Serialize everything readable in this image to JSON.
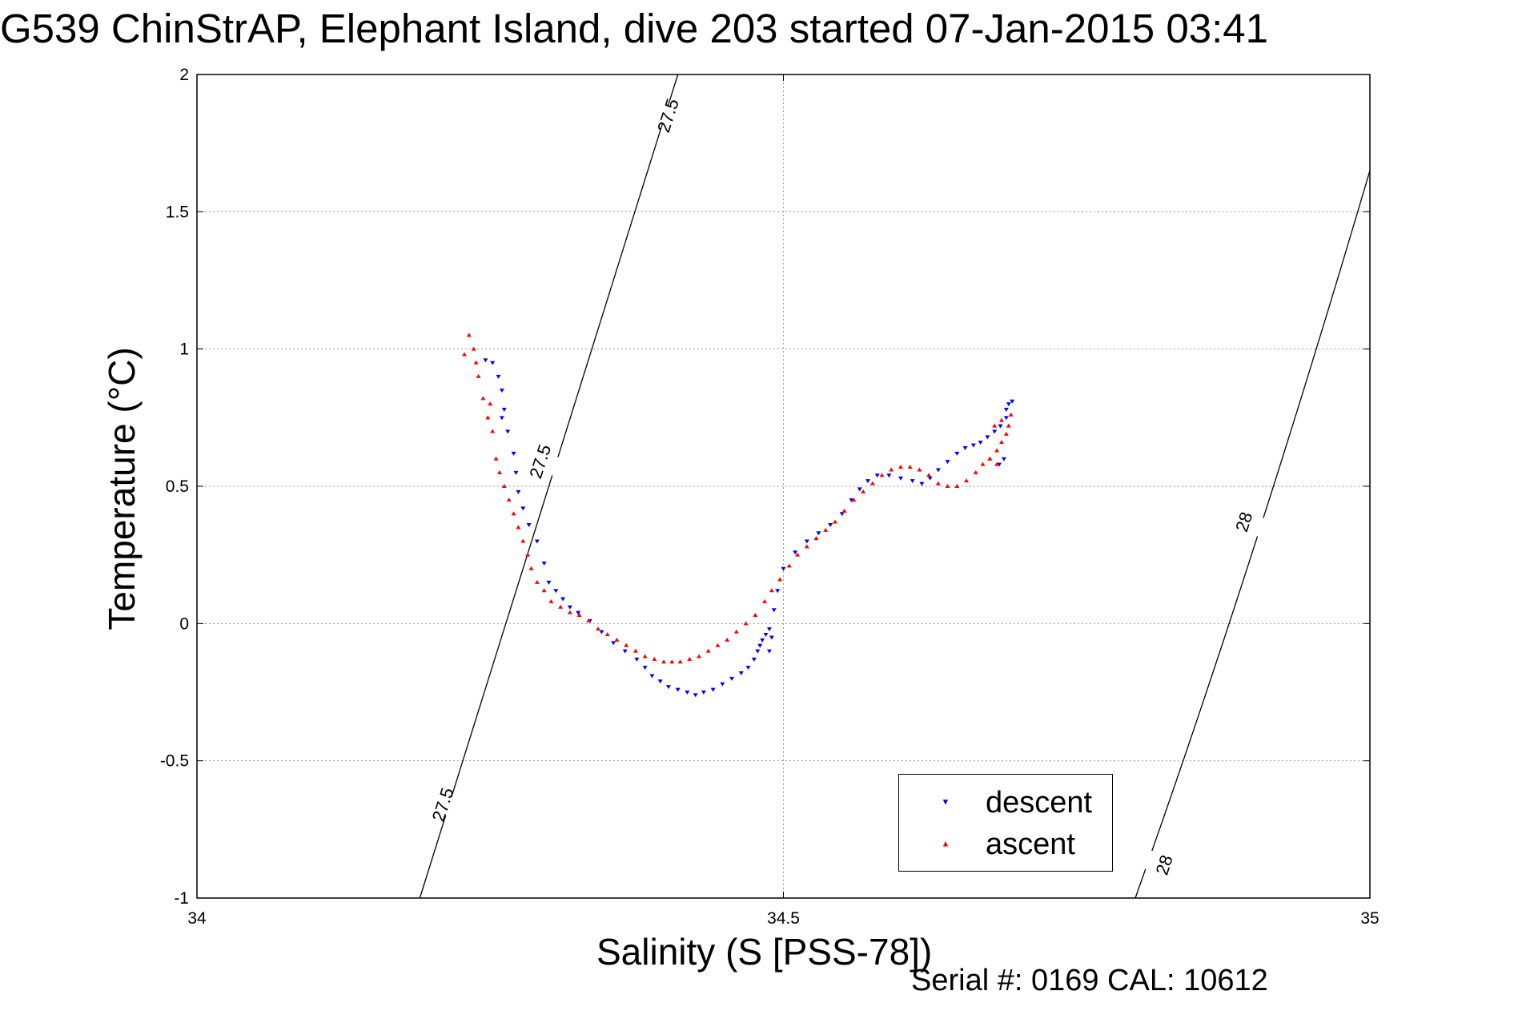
{
  "title": "G539 ChinStrAP, Elephant Island, dive 203 started 07-Jan-2015 03:41",
  "serial_text": "Serial #: 0169 CAL: 10612",
  "chart_data": {
    "type": "scatter",
    "title": "G539 ChinStrAP, Elephant Island, dive 203 started 07-Jan-2015 03:41",
    "xlabel": "Salinity (S [PSS-78])",
    "ylabel": "Temperature (°C)",
    "xlim": [
      34,
      35
    ],
    "ylim": [
      -1,
      2
    ],
    "xticks": [
      "34",
      "34.5",
      "35"
    ],
    "yticks": [
      "-1",
      "-0.5",
      "0",
      "0.5",
      "1",
      "1.5",
      "2"
    ],
    "grid": true,
    "legend_position": "bottom-right",
    "legend": [
      "descent",
      "ascent"
    ],
    "colors": {
      "descent": "#0000ff",
      "ascent": "#ff0000"
    },
    "series": [
      {
        "name": "descent",
        "color": "#0000ff",
        "marker": "triangle-down",
        "x": [
          34.246,
          34.252,
          34.257,
          34.26,
          34.262,
          34.26,
          34.265,
          34.27,
          34.272,
          34.274,
          34.278,
          34.283,
          34.29,
          34.296,
          34.3,
          34.306,
          34.312,
          34.318,
          34.325,
          34.335,
          34.345,
          34.355,
          34.365,
          34.375,
          34.382,
          34.388,
          34.395,
          34.402,
          34.41,
          34.418,
          34.425,
          34.432,
          34.44,
          34.448,
          34.456,
          34.464,
          34.47,
          34.475,
          34.478,
          34.48,
          34.482,
          34.485,
          34.488,
          34.49,
          34.488,
          34.492,
          34.495,
          34.5,
          34.51,
          34.52,
          34.53,
          34.54,
          34.55,
          34.558,
          34.565,
          34.572,
          34.58,
          34.59,
          34.6,
          34.61,
          34.618,
          34.625,
          34.632,
          34.64,
          34.648,
          34.655,
          34.662,
          34.668,
          34.674,
          34.68,
          34.685,
          34.69,
          34.69,
          34.692,
          34.695,
          34.688,
          34.684
        ],
        "y": [
          0.96,
          0.95,
          0.9,
          0.85,
          0.78,
          0.75,
          0.7,
          0.62,
          0.55,
          0.48,
          0.42,
          0.36,
          0.3,
          0.22,
          0.15,
          0.12,
          0.09,
          0.06,
          0.04,
          0.01,
          -0.03,
          -0.07,
          -0.1,
          -0.13,
          -0.16,
          -0.19,
          -0.21,
          -0.23,
          -0.24,
          -0.25,
          -0.26,
          -0.25,
          -0.24,
          -0.22,
          -0.2,
          -0.18,
          -0.16,
          -0.13,
          -0.1,
          -0.08,
          -0.06,
          -0.04,
          -0.02,
          -0.05,
          -0.1,
          0.05,
          0.12,
          0.2,
          0.26,
          0.3,
          0.33,
          0.36,
          0.4,
          0.45,
          0.49,
          0.52,
          0.54,
          0.54,
          0.53,
          0.52,
          0.51,
          0.53,
          0.56,
          0.59,
          0.62,
          0.64,
          0.65,
          0.66,
          0.68,
          0.7,
          0.72,
          0.75,
          0.78,
          0.8,
          0.81,
          0.6,
          0.58
        ]
      },
      {
        "name": "ascent",
        "color": "#ff0000",
        "marker": "triangle-up",
        "x": [
          34.228,
          34.232,
          34.236,
          34.238,
          34.24,
          34.244,
          34.25,
          34.248,
          34.252,
          34.255,
          34.258,
          34.262,
          34.266,
          34.27,
          34.274,
          34.278,
          34.282,
          34.285,
          34.29,
          34.296,
          34.302,
          34.31,
          34.318,
          34.326,
          34.334,
          34.342,
          34.35,
          34.358,
          34.366,
          34.374,
          34.382,
          34.39,
          34.398,
          34.405,
          34.412,
          34.42,
          34.428,
          34.436,
          34.444,
          34.452,
          34.46,
          34.468,
          34.476,
          34.484,
          34.49,
          34.497,
          34.505,
          34.512,
          34.52,
          34.528,
          34.536,
          34.544,
          34.552,
          34.56,
          34.568,
          34.576,
          34.584,
          34.592,
          34.6,
          34.608,
          34.616,
          34.624,
          34.632,
          34.64,
          34.648,
          34.656,
          34.664,
          34.67,
          34.676,
          34.682,
          34.686,
          34.69,
          34.692,
          34.694,
          34.686,
          34.68,
          34.676,
          34.682
        ],
        "y": [
          0.98,
          1.05,
          1.0,
          0.95,
          0.9,
          0.82,
          0.8,
          0.75,
          0.7,
          0.6,
          0.55,
          0.5,
          0.45,
          0.4,
          0.35,
          0.3,
          0.25,
          0.2,
          0.15,
          0.12,
          0.08,
          0.06,
          0.04,
          0.03,
          0.01,
          -0.02,
          -0.04,
          -0.06,
          -0.08,
          -0.1,
          -0.12,
          -0.13,
          -0.14,
          -0.14,
          -0.14,
          -0.13,
          -0.12,
          -0.1,
          -0.08,
          -0.06,
          -0.03,
          0.0,
          0.03,
          0.08,
          0.12,
          0.16,
          0.21,
          0.25,
          0.28,
          0.31,
          0.34,
          0.37,
          0.41,
          0.45,
          0.48,
          0.51,
          0.54,
          0.56,
          0.57,
          0.57,
          0.56,
          0.54,
          0.51,
          0.5,
          0.5,
          0.52,
          0.55,
          0.58,
          0.6,
          0.63,
          0.66,
          0.69,
          0.72,
          0.76,
          0.74,
          0.72,
          0.6,
          0.58
        ]
      }
    ],
    "contours": [
      {
        "label": "27.5",
        "x": [
          34.19,
          34.3,
          34.41
        ],
        "y": [
          -1,
          0.5,
          2
        ]
      },
      {
        "label": "28",
        "x": [
          34.8,
          34.9,
          35.0
        ],
        "y": [
          -1,
          0.2,
          1.65
        ]
      }
    ],
    "contour_labels": [
      {
        "text": "27.5",
        "x": 34.402,
        "y": 1.85
      },
      {
        "text": "27.5",
        "x": 34.293,
        "y": 0.59
      },
      {
        "text": "27.5",
        "x": 34.21,
        "y": -0.66
      },
      {
        "text": "28",
        "x": 34.893,
        "y": 0.37
      },
      {
        "text": "28",
        "x": 34.825,
        "y": -0.88
      }
    ]
  }
}
